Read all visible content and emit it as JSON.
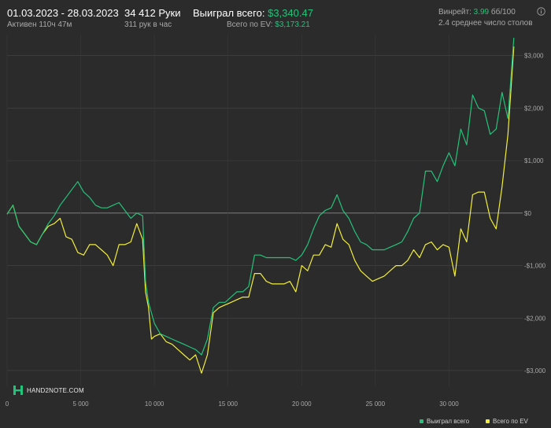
{
  "header": {
    "date_range": "01.03.2023 - 28.03.2023",
    "active_time": "Активен 110ч 47м",
    "hands": "34 412 Руки",
    "hands_per_hour": "311 рук в час",
    "won_label": "Выиграл всего:",
    "won_value": "$3,340.47",
    "ev_label": "Всего по EV:",
    "ev_value": "$3,173.21",
    "winrate_label": "Винрейт:",
    "winrate_value": "3.99",
    "winrate_unit": "бб/100",
    "avg_tables": "2.4 среднее число столов",
    "info_icon": "info-icon"
  },
  "brand": {
    "text": "HAND2NOTE.COM",
    "logo_icon": "hand2note-logo-icon"
  },
  "colors": {
    "won": "#22c37a",
    "ev": "#f2ee3a",
    "background": "#2b2b2b",
    "grid": "#474747"
  },
  "chart_data": {
    "type": "line",
    "xlabel": "",
    "ylabel": "",
    "x_ticks": [
      "0",
      "5 000",
      "10 000",
      "15 000",
      "20 000",
      "25 000",
      "30 000"
    ],
    "x_tick_values": [
      0,
      5000,
      10000,
      15000,
      20000,
      25000,
      30000
    ],
    "y_ticks": [
      "$3,000",
      "$2,000",
      "$1,000",
      "$0",
      "-$1,000",
      "-$2,000",
      "-$3,000"
    ],
    "y_tick_values": [
      3000,
      2000,
      1000,
      0,
      -1000,
      -2000,
      -3000
    ],
    "xlim": [
      0,
      35000
    ],
    "ylim": [
      -3300,
      3400
    ],
    "grid": true,
    "legend_position": "bottom-right",
    "series": [
      {
        "name": "Выиграл всего",
        "color": "#22c37a",
        "points": [
          [
            0,
            -20
          ],
          [
            400,
            150
          ],
          [
            800,
            -250
          ],
          [
            1200,
            -400
          ],
          [
            1600,
            -550
          ],
          [
            2000,
            -600
          ],
          [
            2400,
            -400
          ],
          [
            2800,
            -200
          ],
          [
            3200,
            -50
          ],
          [
            3600,
            150
          ],
          [
            4000,
            300
          ],
          [
            4400,
            450
          ],
          [
            4800,
            600
          ],
          [
            5200,
            400
          ],
          [
            5600,
            300
          ],
          [
            6000,
            150
          ],
          [
            6400,
            100
          ],
          [
            6800,
            100
          ],
          [
            7200,
            150
          ],
          [
            7600,
            200
          ],
          [
            8000,
            50
          ],
          [
            8400,
            -100
          ],
          [
            8800,
            0
          ],
          [
            9200,
            -50
          ],
          [
            9400,
            -1300
          ],
          [
            9600,
            -1700
          ],
          [
            9800,
            -1900
          ],
          [
            10000,
            -2100
          ],
          [
            10400,
            -2300
          ],
          [
            10800,
            -2350
          ],
          [
            11200,
            -2400
          ],
          [
            11600,
            -2450
          ],
          [
            12000,
            -2500
          ],
          [
            12400,
            -2550
          ],
          [
            12800,
            -2600
          ],
          [
            13200,
            -2700
          ],
          [
            13600,
            -2400
          ],
          [
            14000,
            -1800
          ],
          [
            14400,
            -1700
          ],
          [
            14800,
            -1700
          ],
          [
            15200,
            -1600
          ],
          [
            15600,
            -1500
          ],
          [
            16000,
            -1500
          ],
          [
            16400,
            -1400
          ],
          [
            16800,
            -800
          ],
          [
            17200,
            -800
          ],
          [
            17600,
            -850
          ],
          [
            18000,
            -850
          ],
          [
            18400,
            -850
          ],
          [
            18800,
            -850
          ],
          [
            19200,
            -850
          ],
          [
            19600,
            -900
          ],
          [
            20000,
            -800
          ],
          [
            20400,
            -600
          ],
          [
            20800,
            -300
          ],
          [
            21200,
            -50
          ],
          [
            21600,
            50
          ],
          [
            22000,
            100
          ],
          [
            22400,
            350
          ],
          [
            22800,
            50
          ],
          [
            23200,
            -100
          ],
          [
            23600,
            -350
          ],
          [
            24000,
            -550
          ],
          [
            24400,
            -600
          ],
          [
            24800,
            -700
          ],
          [
            25200,
            -700
          ],
          [
            25600,
            -700
          ],
          [
            26000,
            -650
          ],
          [
            26400,
            -600
          ],
          [
            26800,
            -550
          ],
          [
            27200,
            -350
          ],
          [
            27600,
            -100
          ],
          [
            28000,
            0
          ],
          [
            28400,
            800
          ],
          [
            28800,
            800
          ],
          [
            29200,
            600
          ],
          [
            29600,
            900
          ],
          [
            30000,
            1150
          ],
          [
            30400,
            900
          ],
          [
            30800,
            1600
          ],
          [
            31200,
            1300
          ],
          [
            31600,
            2250
          ],
          [
            32000,
            2000
          ],
          [
            32400,
            1950
          ],
          [
            32800,
            1500
          ],
          [
            33200,
            1600
          ],
          [
            33600,
            2300
          ],
          [
            34000,
            1800
          ],
          [
            34400,
            3340
          ]
        ]
      },
      {
        "name": "Всего по EV",
        "color": "#f2ee3a",
        "points": [
          [
            0,
            -20
          ],
          [
            400,
            150
          ],
          [
            800,
            -250
          ],
          [
            1200,
            -400
          ],
          [
            1600,
            -550
          ],
          [
            2000,
            -600
          ],
          [
            2400,
            -400
          ],
          [
            2800,
            -250
          ],
          [
            3200,
            -200
          ],
          [
            3600,
            -100
          ],
          [
            4000,
            -450
          ],
          [
            4400,
            -500
          ],
          [
            4800,
            -750
          ],
          [
            5200,
            -800
          ],
          [
            5600,
            -600
          ],
          [
            6000,
            -600
          ],
          [
            6400,
            -700
          ],
          [
            6800,
            -800
          ],
          [
            7200,
            -1000
          ],
          [
            7600,
            -600
          ],
          [
            8000,
            -600
          ],
          [
            8400,
            -550
          ],
          [
            8800,
            -200
          ],
          [
            9200,
            -500
          ],
          [
            9400,
            -1500
          ],
          [
            9600,
            -1800
          ],
          [
            9800,
            -2400
          ],
          [
            10000,
            -2350
          ],
          [
            10400,
            -2300
          ],
          [
            10800,
            -2450
          ],
          [
            11200,
            -2500
          ],
          [
            11600,
            -2600
          ],
          [
            12000,
            -2700
          ],
          [
            12400,
            -2800
          ],
          [
            12800,
            -2700
          ],
          [
            13200,
            -3050
          ],
          [
            13600,
            -2700
          ],
          [
            14000,
            -1900
          ],
          [
            14400,
            -1800
          ],
          [
            14800,
            -1750
          ],
          [
            15200,
            -1700
          ],
          [
            15600,
            -1650
          ],
          [
            16000,
            -1600
          ],
          [
            16400,
            -1600
          ],
          [
            16800,
            -1150
          ],
          [
            17200,
            -1150
          ],
          [
            17600,
            -1300
          ],
          [
            18000,
            -1350
          ],
          [
            18400,
            -1350
          ],
          [
            18800,
            -1350
          ],
          [
            19200,
            -1300
          ],
          [
            19600,
            -1500
          ],
          [
            20000,
            -1000
          ],
          [
            20400,
            -1100
          ],
          [
            20800,
            -800
          ],
          [
            21200,
            -800
          ],
          [
            21600,
            -600
          ],
          [
            22000,
            -650
          ],
          [
            22400,
            -200
          ],
          [
            22800,
            -500
          ],
          [
            23200,
            -600
          ],
          [
            23600,
            -900
          ],
          [
            24000,
            -1100
          ],
          [
            24400,
            -1200
          ],
          [
            24800,
            -1300
          ],
          [
            25200,
            -1250
          ],
          [
            25600,
            -1200
          ],
          [
            26000,
            -1100
          ],
          [
            26400,
            -1000
          ],
          [
            26800,
            -1000
          ],
          [
            27200,
            -900
          ],
          [
            27600,
            -700
          ],
          [
            28000,
            -850
          ],
          [
            28400,
            -600
          ],
          [
            28800,
            -550
          ],
          [
            29200,
            -700
          ],
          [
            29600,
            -600
          ],
          [
            30000,
            -650
          ],
          [
            30400,
            -1200
          ],
          [
            30800,
            -300
          ],
          [
            31200,
            -550
          ],
          [
            31600,
            350
          ],
          [
            32000,
            400
          ],
          [
            32400,
            400
          ],
          [
            32800,
            -100
          ],
          [
            33200,
            -300
          ],
          [
            33600,
            500
          ],
          [
            34000,
            1500
          ],
          [
            34400,
            3173
          ]
        ]
      }
    ]
  }
}
